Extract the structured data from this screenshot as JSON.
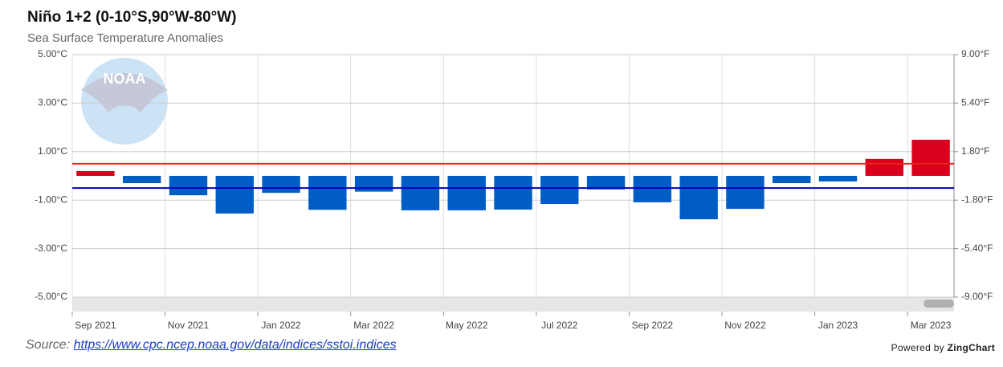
{
  "chart_data": {
    "type": "bar",
    "title": "Niño 1+2 (0-10°S,90°W-80°W)",
    "subtitle": "Sea Surface Temperature Anomalies",
    "watermark": "NOAA",
    "categories": [
      "Sep 2021",
      null,
      "Nov 2021",
      null,
      "Jan 2022",
      null,
      "Mar 2022",
      null,
      "May 2022",
      null,
      "Jul 2022",
      null,
      "Sep 2022",
      null,
      "Nov 2022",
      null,
      "Jan 2023",
      null,
      "Mar 2023"
    ],
    "values": [
      0.2,
      -0.3,
      -0.8,
      -1.55,
      -0.7,
      -1.4,
      -0.65,
      -1.42,
      -1.42,
      -1.39,
      -1.16,
      -0.56,
      -1.09,
      -1.79,
      -1.36,
      -0.3,
      -0.23,
      0.7,
      1.49
    ],
    "colors": {
      "positive": "#d9001b",
      "negative": "#005dc4"
    },
    "thresholds": [
      {
        "value": 0.5,
        "color": "#e8231a"
      },
      {
        "value": -0.5,
        "color": "#0000c0"
      }
    ],
    "ylim": [
      -5,
      5
    ],
    "yticks": [
      {
        "value": 5,
        "label": "5.00°C"
      },
      {
        "value": 3,
        "label": "3.00°C"
      },
      {
        "value": 1,
        "label": "1.00°C"
      },
      {
        "value": -1,
        "label": "-1.00°C"
      },
      {
        "value": -3,
        "label": "-3.00°C"
      },
      {
        "value": -5,
        "label": "-5.00°C"
      }
    ],
    "y2lim": [
      -9,
      9
    ],
    "y2ticks": [
      {
        "value": 9,
        "label": "9.00°F"
      },
      {
        "value": 5.4,
        "label": "5.40°F"
      },
      {
        "value": 1.8,
        "label": "1.80°F"
      },
      {
        "value": -1.8,
        "label": "-1.80°F"
      },
      {
        "value": -5.4,
        "label": "-5.40°F"
      },
      {
        "value": -9,
        "label": "-9.00°F"
      }
    ],
    "grid": true
  },
  "source_label": "Source:",
  "source_url": "https://www.cpc.ncep.noaa.gov/data/indices/sstoi.indices",
  "credit_label": "Powered by",
  "credit_brand": "ZingChart"
}
